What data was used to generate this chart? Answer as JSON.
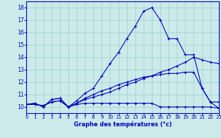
{
  "xlabel": "Graphe des températures (°c)",
  "background_color": "#cceaea",
  "grid_color": "#99cccc",
  "line_color": "#0000bb",
  "xlim": [
    0,
    23
  ],
  "ylim": [
    9.5,
    18.5
  ],
  "xticks": [
    0,
    1,
    2,
    3,
    4,
    5,
    6,
    7,
    8,
    9,
    10,
    11,
    12,
    13,
    14,
    15,
    16,
    17,
    18,
    19,
    20,
    21,
    22,
    23
  ],
  "yticks": [
    10,
    11,
    12,
    13,
    14,
    15,
    16,
    17,
    18
  ],
  "series": [
    {
      "x": [
        0,
        1,
        2,
        3,
        4,
        5,
        6,
        7,
        8,
        9,
        10,
        11,
        12,
        13,
        14,
        15,
        16,
        17,
        18,
        19,
        20,
        21,
        22,
        23
      ],
      "y": [
        10.2,
        10.3,
        10.0,
        10.6,
        10.7,
        10.0,
        10.5,
        11.1,
        11.5,
        12.5,
        13.5,
        14.4,
        15.5,
        16.5,
        17.7,
        18.0,
        17.0,
        15.5,
        15.5,
        14.2,
        14.2,
        11.5,
        10.4,
        10.4
      ]
    },
    {
      "x": [
        0,
        1,
        2,
        3,
        4,
        5,
        6,
        7,
        8,
        9,
        10,
        11,
        12,
        13,
        14,
        15,
        16,
        17,
        18,
        19,
        20,
        21,
        22,
        23
      ],
      "y": [
        10.2,
        10.3,
        10.0,
        10.6,
        10.7,
        10.0,
        10.2,
        10.3,
        10.3,
        10.3,
        10.3,
        10.3,
        10.3,
        10.3,
        10.3,
        10.3,
        10.0,
        10.0,
        10.0,
        10.0,
        10.0,
        10.0,
        10.0,
        9.9
      ]
    },
    {
      "x": [
        0,
        1,
        2,
        3,
        4,
        5,
        6,
        7,
        8,
        9,
        10,
        11,
        12,
        13,
        14,
        15,
        16,
        17,
        18,
        19,
        20,
        21,
        22,
        23
      ],
      "y": [
        10.2,
        10.2,
        10.1,
        10.4,
        10.5,
        10.0,
        10.3,
        10.6,
        10.8,
        11.0,
        11.2,
        11.5,
        11.8,
        12.0,
        12.3,
        12.5,
        12.8,
        13.0,
        13.3,
        13.6,
        14.0,
        13.8,
        13.6,
        13.5
      ]
    },
    {
      "x": [
        0,
        1,
        2,
        3,
        4,
        5,
        6,
        7,
        8,
        9,
        10,
        11,
        12,
        13,
        14,
        15,
        16,
        17,
        18,
        19,
        20,
        21,
        22,
        23
      ],
      "y": [
        10.2,
        10.2,
        10.1,
        10.4,
        10.5,
        10.0,
        10.3,
        10.7,
        11.0,
        11.3,
        11.5,
        11.8,
        12.0,
        12.2,
        12.4,
        12.5,
        12.6,
        12.7,
        12.7,
        12.8,
        12.8,
        11.5,
        10.4,
        9.9
      ]
    }
  ]
}
